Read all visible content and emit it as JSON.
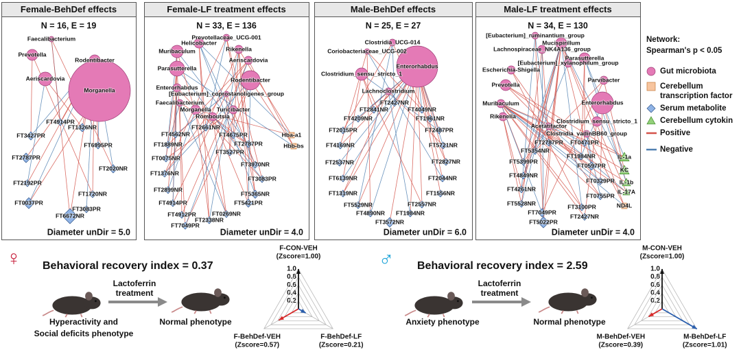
{
  "panels": [
    {
      "title": "Female-BehDef effects",
      "stats": "N = 16, E = 19",
      "diameter": "Diameter unDir = 5.0",
      "nodes": [
        "Faecalibacterium",
        "Prevotella",
        "Rodentibacter",
        "Aeriscardovia",
        "Morganella",
        "FT4914PR",
        "FT1326NR",
        "FT3427PR",
        "FT6995PR",
        "FT2787PR",
        "FT2020NR",
        "FT2192PR",
        "FT1720NR",
        "FT0037PR",
        "FT3083PR",
        "FT6672NR"
      ]
    },
    {
      "title": "Female-LF treatment effects",
      "stats": "N = 33, E = 136",
      "diameter": "Diameter unDir = 4.0",
      "nodes": [
        "Prevotellaceae_UCG-001",
        "Helicobacter",
        "Rikenella",
        "Muribaculum",
        "Aeriscardovia",
        "Parasutterella",
        "Rodentibacter",
        "Enterorhabdus",
        "[Eubacterium]_coprostanoligenes_group",
        "Faecalibacterium",
        "Morganella",
        "Turicibacter",
        "Romboutsia",
        "FT2661NR",
        "FT4562NR",
        "FT4675PR",
        "FT1889NR",
        "FT2787PR",
        "Hba-a1",
        "Hbb-bs",
        "FT3527PR",
        "FT0075NR",
        "FT3970NR",
        "FT1376NR",
        "FT3083PR",
        "FT2899NR",
        "FT5365NR",
        "FT4914PR",
        "FT5421PR",
        "FT4912PR",
        "FT0269NR",
        "FT2338NR",
        "FT7049PR"
      ]
    },
    {
      "title": "Male-BehDef effects",
      "stats": "N = 25, E = 27",
      "diameter": "Diameter unDir = 6.0",
      "nodes": [
        "Clostridia_UCG-014",
        "Coriobacteriaceae_UCG-002",
        "Enterorhabdus",
        "Clostridium_sensu_stricto_1",
        "Lachnoclostridium",
        "FT2427NR",
        "FT2841NR",
        "FT4049NR",
        "FT4209NR",
        "FT1961NR",
        "FT2015PR",
        "FT2487PR",
        "FT4169NR",
        "FT5721NR",
        "FT2537NR",
        "FT2827NR",
        "FT6139NR",
        "FT2044NR",
        "FT1319NR",
        "FT1556NR",
        "FT5529NR",
        "FT2557NR",
        "FT4890NR",
        "FT1984NR",
        "FT3572NR"
      ]
    },
    {
      "title": "Male-LF treatment effects",
      "stats": "N = 34, E = 130",
      "diameter": "Diameter unDir = 4.0",
      "nodes": [
        "[Eubacterium]_ruminantium_group",
        "Mucispirillum",
        "Lachnospiraceae_NK4A136_group",
        "Parasutterella",
        "[Eubacterium]_xylanophilum_group",
        "Escherichia-Shigella",
        "Parvibacter",
        "Prevotella",
        "Muribaculum",
        "Enterorhabdus",
        "Rikenella",
        "Clostridium_sensu_stricto_1",
        "Acetatifactor",
        "Clostridia_vadinBB60_group",
        "FT2787PR",
        "FT0471PR",
        "FT5354NR",
        "FT1984NR",
        "FT5399PR",
        "FT0597PR",
        "FT4849NR",
        "FT0329PR",
        "FT4261NR",
        "FT0755PR",
        "FT5528NR",
        "FT3100PR",
        "FT7049PR",
        "FT2427NR",
        "FT5022PR",
        "IL-1a",
        "KC",
        "IL-1b",
        "IL-17A",
        "ND4L"
      ]
    }
  ],
  "legend": {
    "title": "Network:",
    "subtitle": "Spearman's p < 0.05",
    "items": [
      {
        "label": [
          "Gut microbiota"
        ],
        "color": "#e47ab6"
      },
      {
        "label": [
          "Cerebellum",
          "transcription factor"
        ],
        "color": "#f7c59f"
      },
      {
        "label": [
          "Serum metabolite"
        ],
        "color": "#8fb3e6"
      },
      {
        "label": [
          "Cerebellum cytokin"
        ],
        "color": "#93d07a"
      },
      {
        "label": [
          "Positive"
        ],
        "color": "#d4534a"
      },
      {
        "label": [
          "Negative"
        ],
        "color": "#4f7fb0"
      }
    ]
  },
  "recovery": [
    {
      "symbol": "♀",
      "index_text": "Behavioral recovery index = 0.37",
      "treatment": [
        "Lactoferrin",
        "treatment"
      ],
      "before": [
        "Hyperactivity and",
        "Social deficits phenotype"
      ],
      "after": "Normal phenotype"
    },
    {
      "symbol": "♂",
      "index_text": "Behavioral recovery index = 2.59",
      "treatment": [
        "Lactoferrin",
        "treatment"
      ],
      "before": [
        "Anxiety phenotype"
      ],
      "after": "Normal phenotype"
    }
  ],
  "chart_data": [
    {
      "type": "radar",
      "axes": [
        "F-CON-VEH",
        "F-BehDef-VEH",
        "F-BehDef-LF"
      ],
      "values": [
        1.0,
        0.57,
        0.21
      ],
      "value_labels": [
        "(Zscore=1.00)",
        "(Zscore=0.57)",
        "(Zscore=0.21)"
      ],
      "colors": [
        "#111111",
        "#d62828",
        "#2b5fae"
      ],
      "ylim": [
        0,
        1
      ],
      "yticks": [
        0.2,
        0.4,
        0.6,
        0.8,
        {
          "value": 1,
          "label": "1.0"
        }
      ]
    },
    {
      "type": "radar",
      "axes": [
        "M-CON-VEH",
        "M-BehDef-VEH",
        "M-BehDef-LF"
      ],
      "values": [
        1.0,
        0.39,
        1.01
      ],
      "value_labels": [
        "(Zscore=1.00)",
        "(Zscore=0.39)",
        "(Zscore=1.01)"
      ],
      "colors": [
        "#111111",
        "#d62828",
        "#2b5fae"
      ],
      "ylim": [
        0,
        1
      ],
      "yticks": [
        0.2,
        0.4,
        0.6,
        0.8,
        {
          "value": 1,
          "label": "1.0"
        }
      ]
    }
  ]
}
